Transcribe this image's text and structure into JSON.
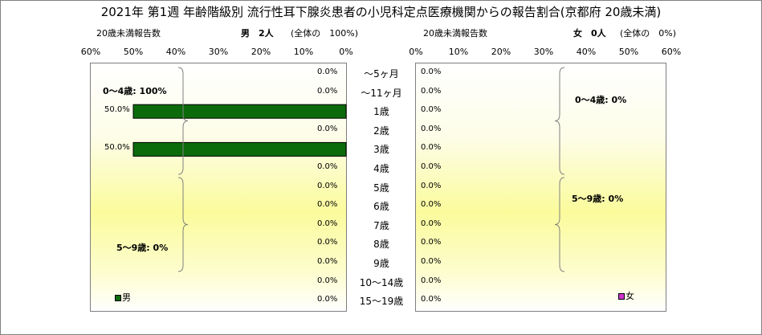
{
  "chart_data": {
    "type": "bar",
    "title": "2021年 第1週 年齢階級別 流行性耳下腺炎患者の小児科定点医療機関からの報告割合(京都府 20歳未満)",
    "categories": [
      "～5ヶ月",
      "～11ヶ月",
      "1歳",
      "2歳",
      "3歳",
      "4歳",
      "5歳",
      "6歳",
      "7歳",
      "8歳",
      "9歳",
      "10～14歳",
      "15～19歳"
    ],
    "xlim": [
      0,
      60
    ],
    "x_ticks": [
      "60%",
      "50%",
      "40%",
      "30%",
      "20%",
      "10%",
      "0%"
    ],
    "x_ticks_right": [
      "0%",
      "10%",
      "20%",
      "30%",
      "40%",
      "50%",
      "60%"
    ],
    "series": [
      {
        "name": "男",
        "color": "#0b6b0b",
        "values": [
          0,
          0,
          50,
          0,
          50,
          0,
          0,
          0,
          0,
          0,
          0,
          0,
          0
        ],
        "labels": [
          "0.0%",
          "0.0%",
          "50.0%",
          "0.0%",
          "50.0%",
          "0.0%",
          "0.0%",
          "0.0%",
          "0.0%",
          "0.0%",
          "0.0%",
          "0.0%",
          "0.0%"
        ],
        "header_left": "20歳未満報告数",
        "header_count": "男　2人",
        "header_share": "(全体の　100%)",
        "group_labels": [
          "0～4歳: 100%",
          "5～9歳: 0%"
        ]
      },
      {
        "name": "女",
        "color": "#cc33cc",
        "values": [
          0,
          0,
          0,
          0,
          0,
          0,
          0,
          0,
          0,
          0,
          0,
          0,
          0
        ],
        "labels": [
          "0.0%",
          "0.0%",
          "0.0%",
          "0.0%",
          "0.0%",
          "0.0%",
          "0.0%",
          "0.0%",
          "0.0%",
          "0.0%",
          "0.0%",
          "0.0%",
          "0.0%"
        ],
        "header_left": "20歳未満報告数",
        "header_count": "女　0人",
        "header_share": "(全体の　0%)",
        "group_labels": [
          "0～4歳: 0%",
          "5～9歳: 0%"
        ]
      }
    ],
    "legend": {
      "male": "男",
      "female": "女"
    }
  }
}
